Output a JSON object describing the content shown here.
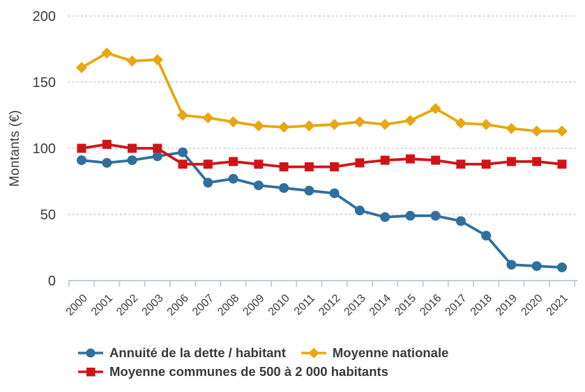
{
  "page": {
    "background": "#ffffff"
  },
  "chart_data": {
    "type": "line",
    "title": "",
    "xlabel": "",
    "ylabel": "Montants (€)",
    "ylim": [
      0,
      200
    ],
    "yticks": [
      0,
      50,
      100,
      150,
      200
    ],
    "grid": "horizontal-dotted",
    "legend_position": "bottom-left",
    "categories": [
      "2000",
      "2001",
      "2002",
      "2003",
      "2006",
      "2007",
      "2008",
      "2009",
      "2010",
      "2011",
      "2012",
      "2013",
      "2014",
      "2015",
      "2016",
      "2017",
      "2018",
      "2019",
      "2020",
      "2021"
    ],
    "series": [
      {
        "id": "annuite-dette-habitant",
        "name": "Annuité de la dette / habitant",
        "marker": "circle",
        "color": "#2e6f9f",
        "values": [
          91,
          89,
          91,
          94,
          97,
          74,
          77,
          72,
          70,
          68,
          66,
          53,
          48,
          49,
          49,
          45,
          34,
          12,
          11,
          10
        ]
      },
      {
        "id": "moyenne-nationale",
        "name": "Moyenne nationale",
        "marker": "diamond",
        "color": "#e8a70e",
        "values": [
          161,
          172,
          166,
          167,
          125,
          123,
          120,
          117,
          116,
          117,
          118,
          120,
          118,
          121,
          130,
          119,
          118,
          115,
          113,
          113
        ]
      },
      {
        "id": "moyenne-communes-500-2000",
        "name": "Moyenne communes de 500 à 2 000 habitants",
        "marker": "square",
        "color": "#d11318",
        "values": [
          100,
          103,
          100,
          100,
          88,
          88,
          90,
          88,
          86,
          86,
          86,
          89,
          91,
          92,
          91,
          88,
          88,
          90,
          90,
          88
        ]
      }
    ],
    "style": {
      "axis_color": "#b6c8d4",
      "grid_color": "#c9c9c9",
      "text_color": "#3b3b3d"
    }
  }
}
